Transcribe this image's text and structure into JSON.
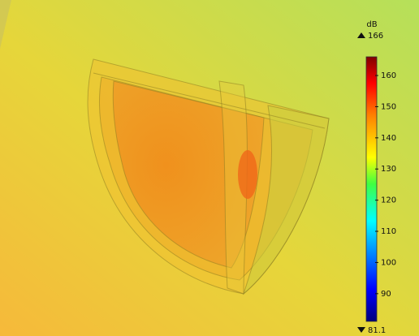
{
  "colorbar": {
    "unit": "dB",
    "max": 166,
    "min": 81.1,
    "range": [
      81.1,
      166
    ],
    "ticks": [
      90,
      100,
      110,
      120,
      130,
      140,
      150,
      160
    ]
  }
}
